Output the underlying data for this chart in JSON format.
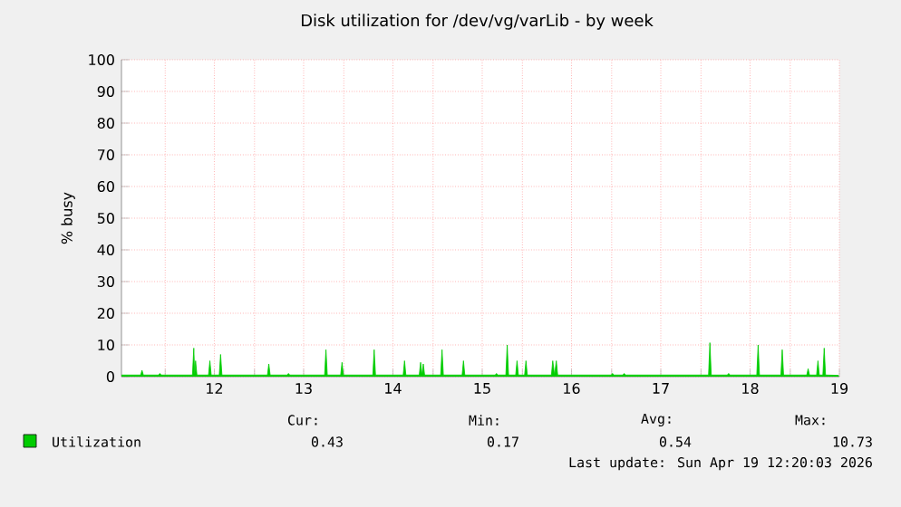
{
  "chart_data": {
    "type": "area",
    "title": "Disk utilization for /dev/vg/varLib - by week",
    "ylabel": "% busy",
    "xlim": [
      10.96,
      19.0
    ],
    "ylim": [
      0,
      100
    ],
    "xticks": [
      {
        "value": 11.45,
        "label": null
      },
      12,
      {
        "value": 12.45,
        "label": null
      },
      13,
      {
        "value": 13.45,
        "label": null
      },
      14,
      {
        "value": 14.45,
        "label": null
      },
      15,
      {
        "value": 15.45,
        "label": null
      },
      16,
      {
        "value": 16.45,
        "label": null
      },
      17,
      {
        "value": 17.45,
        "label": null
      },
      18,
      {
        "value": 18.45,
        "label": null
      },
      19
    ],
    "yticks": [
      0,
      10,
      20,
      30,
      40,
      50,
      60,
      70,
      80,
      90,
      100
    ],
    "grid": true,
    "legend": "bottom",
    "marker": "none",
    "series": [
      {
        "name": "Utilization",
        "color": "#00cc00",
        "x": [
          10.96,
          11.175,
          11.19,
          11.205,
          11.375,
          11.39,
          11.405,
          11.755,
          11.77,
          11.78,
          11.79,
          11.805,
          11.935,
          11.95,
          11.965,
          12.055,
          12.07,
          12.085,
          12.595,
          12.61,
          12.625,
          12.815,
          12.83,
          12.845,
          13.235,
          13.25,
          13.265,
          13.415,
          13.43,
          13.445,
          13.775,
          13.79,
          13.805,
          14.115,
          14.13,
          14.145,
          14.295,
          14.31,
          14.325,
          14.34,
          14.355,
          14.535,
          14.55,
          14.565,
          14.775,
          14.79,
          14.805,
          15.145,
          15.16,
          15.175,
          15.265,
          15.28,
          15.295,
          15.375,
          15.39,
          15.405,
          15.475,
          15.49,
          15.505,
          15.775,
          15.79,
          15.81,
          15.83,
          15.845,
          16.445,
          16.46,
          16.475,
          16.575,
          16.59,
          16.605,
          17.535,
          17.55,
          17.565,
          17.745,
          17.76,
          17.775,
          18.075,
          18.09,
          18.105,
          18.345,
          18.36,
          18.375,
          18.635,
          18.65,
          18.665,
          18.745,
          18.76,
          18.775,
          18.815,
          18.83,
          18.845,
          18.99
        ],
        "values": [
          0.5,
          0.5,
          2,
          0.5,
          0.5,
          1,
          0.5,
          0.5,
          9,
          0.5,
          5,
          0.5,
          0.5,
          5,
          0.5,
          0.5,
          7,
          0.5,
          0.5,
          4,
          0.5,
          0.5,
          1,
          0.5,
          0.5,
          8.5,
          0.5,
          0.5,
          4.5,
          0.5,
          0.5,
          8.5,
          0.5,
          0.5,
          5,
          0.5,
          0.5,
          4.5,
          0.5,
          4,
          0.5,
          0.5,
          8.5,
          0.5,
          0.5,
          5,
          0.5,
          0.5,
          1,
          0.5,
          0.5,
          10,
          0.5,
          0.5,
          5,
          0.5,
          0.5,
          5,
          0.5,
          0.5,
          5,
          0.5,
          5,
          0.5,
          0.5,
          1,
          0.5,
          0.5,
          1,
          0.5,
          0.5,
          10.7,
          0.5,
          0.5,
          1,
          0.5,
          0.5,
          10,
          0.5,
          0.5,
          8.5,
          0.5,
          0.5,
          2.5,
          0.5,
          0.5,
          5,
          0.5,
          0.5,
          9,
          0.5,
          0.4
        ]
      }
    ],
    "annotations": [
      "Cur:",
      "0.43",
      "Min:",
      "0.17",
      "Avg:",
      "0.54",
      "Max:",
      "10.73",
      "Last update:  Sun Apr 19 12:20:03 2026"
    ]
  }
}
